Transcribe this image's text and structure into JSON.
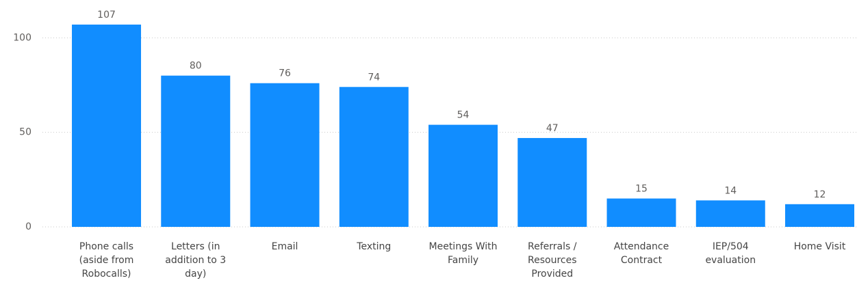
{
  "chart_data": {
    "type": "bar",
    "categories": [
      "Phone calls (aside from Robocalls)",
      "Letters (in addition to 3 day)",
      "Email",
      "Texting",
      "Meetings With Family",
      "Referrals / Resources Provided",
      "Attendance Contract",
      "IEP/504 evaluation",
      "Home Visit"
    ],
    "values": [
      107,
      80,
      76,
      74,
      54,
      47,
      15,
      14,
      12
    ],
    "color": "#118dff",
    "ylim": [
      0,
      120
    ],
    "yticks": [
      0,
      50,
      100
    ],
    "grid": true
  }
}
